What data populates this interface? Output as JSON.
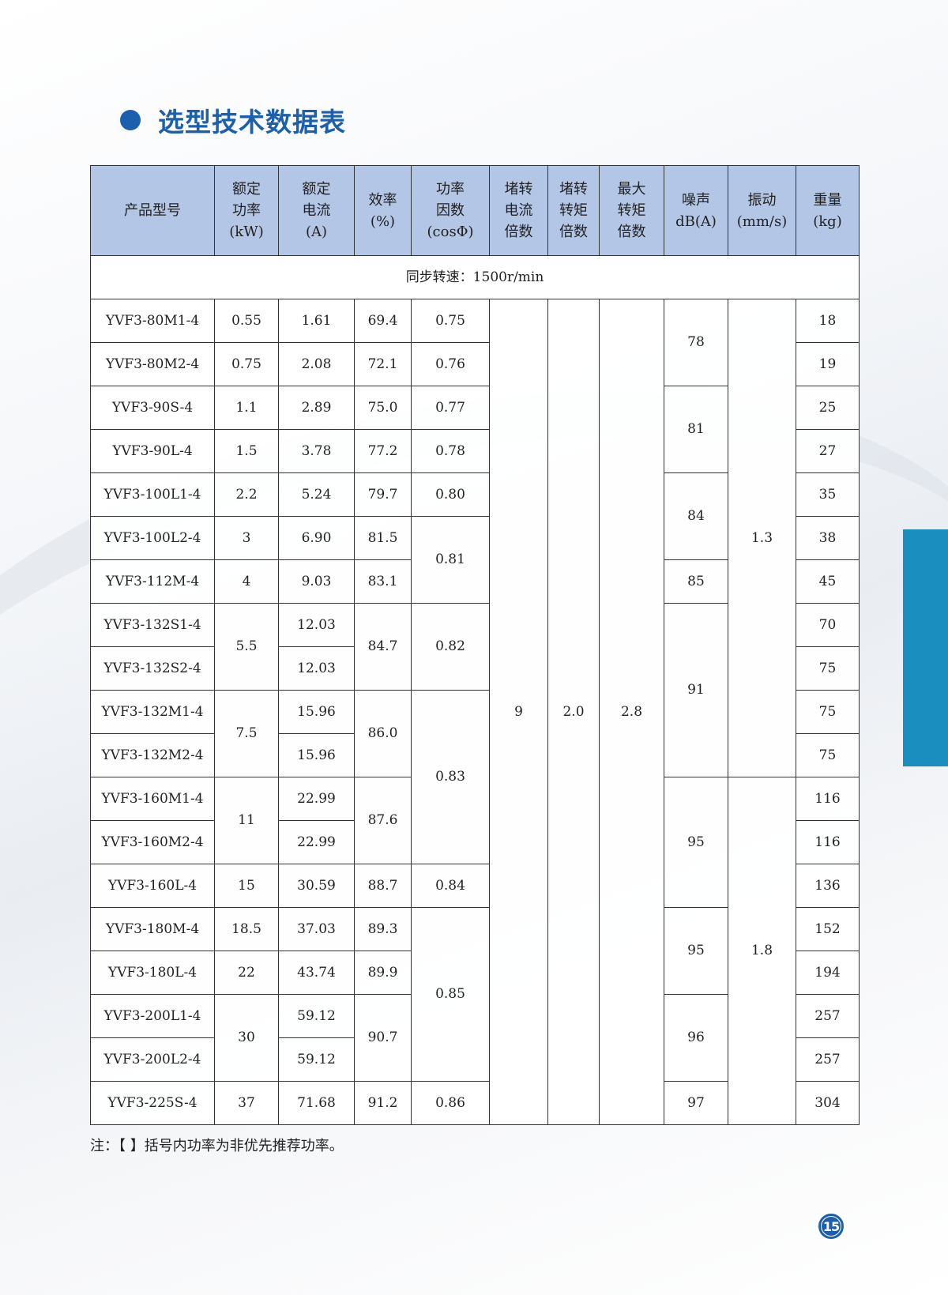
{
  "colors": {
    "accent": "#1c5fac",
    "header": "#b4c6e6",
    "tab": "#1a8fbf"
  },
  "title": "选型技术数据表",
  "headers": [
    "产品型号",
    "额定\n功率\n(kW)",
    "额定\n电流\n(A)",
    "效率\n(%)",
    "功率\n因数\n(cosΦ)",
    "堵转\n电流\n倍数",
    "堵转\n转矩\n倍数",
    "最大\n转矩\n倍数",
    "噪声\ndB(A)",
    "振动\n(mm/s)",
    "重量\n(kg)"
  ],
  "speed_row": "同步转速：1500r/min",
  "rows": [
    [
      {
        "v": "YVF3-80M1-4"
      },
      {
        "v": "0.55"
      },
      {
        "v": "1.61"
      },
      {
        "v": "69.4"
      },
      {
        "v": "0.75"
      },
      {
        "v": "9",
        "rs": 19
      },
      {
        "v": "2.0",
        "rs": 19
      },
      {
        "v": "2.8",
        "rs": 19
      },
      {
        "v": "78",
        "rs": 2
      },
      {
        "v": "1.3",
        "rs": 11
      },
      {
        "v": "18"
      }
    ],
    [
      {
        "v": "YVF3-80M2-4"
      },
      {
        "v": "0.75"
      },
      {
        "v": "2.08"
      },
      {
        "v": "72.1"
      },
      {
        "v": "0.76"
      },
      {
        "v": "19"
      }
    ],
    [
      {
        "v": "YVF3-90S-4"
      },
      {
        "v": "1.1"
      },
      {
        "v": "2.89"
      },
      {
        "v": "75.0"
      },
      {
        "v": "0.77"
      },
      {
        "v": "81",
        "rs": 2
      },
      {
        "v": "25"
      }
    ],
    [
      {
        "v": "YVF3-90L-4"
      },
      {
        "v": "1.5"
      },
      {
        "v": "3.78"
      },
      {
        "v": "77.2"
      },
      {
        "v": "0.78"
      },
      {
        "v": "27"
      }
    ],
    [
      {
        "v": "YVF3-100L1-4"
      },
      {
        "v": "2.2"
      },
      {
        "v": "5.24"
      },
      {
        "v": "79.7"
      },
      {
        "v": "0.80"
      },
      {
        "v": "84",
        "rs": 2
      },
      {
        "v": "35"
      }
    ],
    [
      {
        "v": "YVF3-100L2-4"
      },
      {
        "v": "3"
      },
      {
        "v": "6.90"
      },
      {
        "v": "81.5"
      },
      {
        "v": "0.81",
        "rs": 2
      },
      {
        "v": "38"
      }
    ],
    [
      {
        "v": "YVF3-112M-4"
      },
      {
        "v": "4"
      },
      {
        "v": "9.03"
      },
      {
        "v": "83.1"
      },
      {
        "v": "85"
      },
      {
        "v": "45"
      }
    ],
    [
      {
        "v": "YVF3-132S1-4"
      },
      {
        "v": "5.5",
        "rs": 2
      },
      {
        "v": "12.03"
      },
      {
        "v": "84.7",
        "rs": 2
      },
      {
        "v": "0.82",
        "rs": 2
      },
      {
        "v": "91",
        "rs": 4
      },
      {
        "v": "70"
      }
    ],
    [
      {
        "v": "YVF3-132S2-4"
      },
      {
        "v": "12.03"
      },
      {
        "v": "75"
      }
    ],
    [
      {
        "v": "YVF3-132M1-4"
      },
      {
        "v": "7.5",
        "rs": 2
      },
      {
        "v": "15.96"
      },
      {
        "v": "86.0",
        "rs": 2
      },
      {
        "v": "0.83",
        "rs": 4
      },
      {
        "v": "75"
      }
    ],
    [
      {
        "v": "YVF3-132M2-4"
      },
      {
        "v": "15.96"
      },
      {
        "v": "75"
      }
    ],
    [
      {
        "v": "YVF3-160M1-4"
      },
      {
        "v": "11",
        "rs": 2
      },
      {
        "v": "22.99"
      },
      {
        "v": "87.6",
        "rs": 2
      },
      {
        "v": "95",
        "rs": 3
      },
      {
        "v": "1.8",
        "rs": 8
      },
      {
        "v": "116"
      }
    ],
    [
      {
        "v": "YVF3-160M2-4"
      },
      {
        "v": "22.99"
      },
      {
        "v": "116"
      }
    ],
    [
      {
        "v": "YVF3-160L-4"
      },
      {
        "v": "15"
      },
      {
        "v": "30.59"
      },
      {
        "v": "88.7"
      },
      {
        "v": "0.84"
      },
      {
        "v": "136"
      }
    ],
    [
      {
        "v": "YVF3-180M-4"
      },
      {
        "v": "18.5"
      },
      {
        "v": "37.03"
      },
      {
        "v": "89.3"
      },
      {
        "v": "0.85",
        "rs": 4
      },
      {
        "v": "95",
        "rs": 2
      },
      {
        "v": "152"
      }
    ],
    [
      {
        "v": "YVF3-180L-4"
      },
      {
        "v": "22"
      },
      {
        "v": "43.74"
      },
      {
        "v": "89.9"
      },
      {
        "v": "194"
      }
    ],
    [
      {
        "v": "YVF3-200L1-4"
      },
      {
        "v": "30",
        "rs": 2
      },
      {
        "v": "59.12"
      },
      {
        "v": "90.7",
        "rs": 2
      },
      {
        "v": "96",
        "rs": 2
      },
      {
        "v": "257"
      }
    ],
    [
      {
        "v": "YVF3-200L2-4"
      },
      {
        "v": "59.12"
      },
      {
        "v": "257"
      }
    ],
    [
      {
        "v": "YVF3-225S-4"
      },
      {
        "v": "37"
      },
      {
        "v": "71.68"
      },
      {
        "v": "91.2"
      },
      {
        "v": "0.86"
      },
      {
        "v": "97"
      },
      {
        "v": "304"
      }
    ]
  ],
  "note": "注：【 】括号内功率为非优先推荐功率。",
  "page_number": "15"
}
